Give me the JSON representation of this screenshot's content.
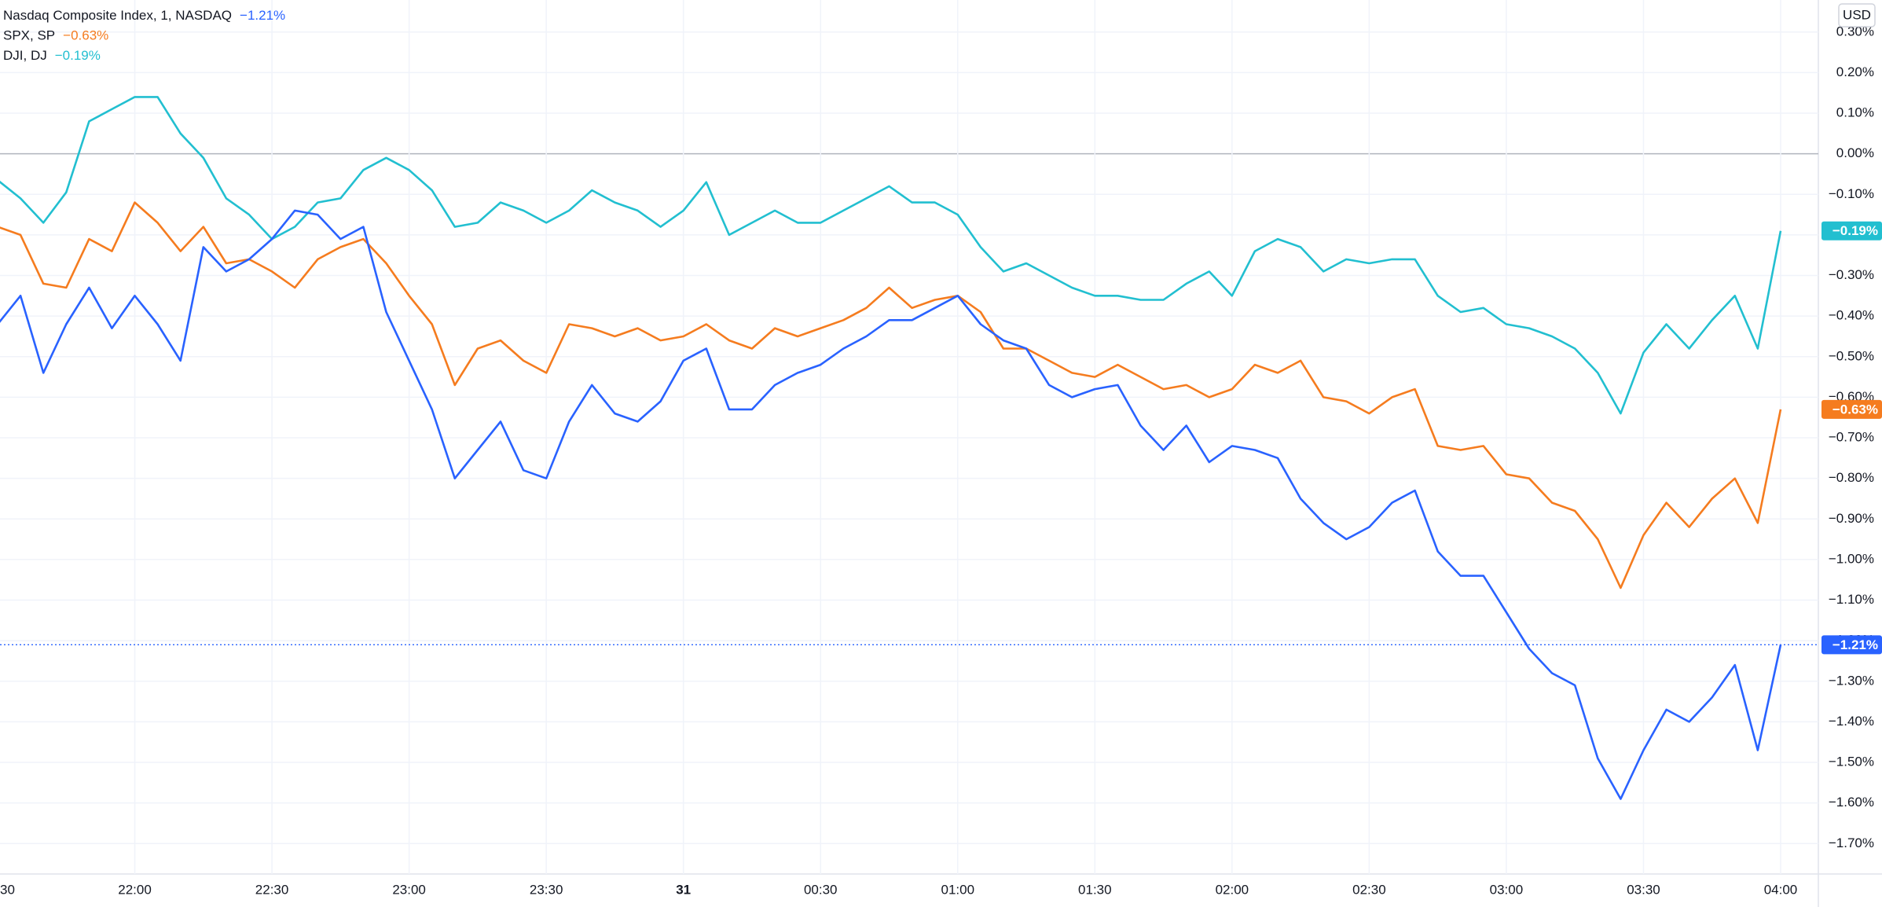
{
  "chart_data": {
    "type": "line",
    "currency": "USD",
    "x": [
      "21:30",
      "21:35",
      "21:40",
      "21:45",
      "21:50",
      "21:55",
      "22:00",
      "22:05",
      "22:10",
      "22:15",
      "22:20",
      "22:25",
      "22:30",
      "22:35",
      "22:40",
      "22:45",
      "22:50",
      "22:55",
      "23:00",
      "23:05",
      "23:10",
      "23:15",
      "23:20",
      "23:25",
      "23:30",
      "23:35",
      "23:40",
      "23:45",
      "23:50",
      "23:55",
      "00:00",
      "00:05",
      "00:10",
      "00:15",
      "00:20",
      "00:25",
      "00:30",
      "00:35",
      "00:40",
      "00:45",
      "00:50",
      "00:55",
      "01:00",
      "01:05",
      "01:10",
      "01:15",
      "01:20",
      "01:25",
      "01:30",
      "01:35",
      "01:40",
      "01:45",
      "01:50",
      "01:55",
      "02:00",
      "02:05",
      "02:10",
      "02:15",
      "02:20",
      "02:25",
      "02:30",
      "02:35",
      "02:40",
      "02:45",
      "02:50",
      "02:55",
      "03:00",
      "03:05",
      "03:10",
      "03:15",
      "03:20",
      "03:25",
      "03:30",
      "03:35",
      "03:40",
      "03:45",
      "03:50",
      "03:55",
      "04:00"
    ],
    "series": [
      {
        "name": "Nasdaq Composite Index, 1, NASDAQ",
        "value_label": "−1.21%",
        "color": "#2962ff",
        "values": [
          -0.42,
          -0.35,
          -0.54,
          -0.42,
          -0.33,
          -0.43,
          -0.35,
          -0.42,
          -0.51,
          -0.23,
          -0.29,
          -0.26,
          -0.21,
          -0.14,
          -0.15,
          -0.21,
          -0.18,
          -0.39,
          -0.51,
          -0.63,
          -0.8,
          -0.73,
          -0.66,
          -0.78,
          -0.8,
          -0.66,
          -0.57,
          -0.64,
          -0.66,
          -0.61,
          -0.51,
          -0.48,
          -0.63,
          -0.63,
          -0.57,
          -0.54,
          -0.52,
          -0.48,
          -0.45,
          -0.41,
          -0.41,
          -0.38,
          -0.35,
          -0.42,
          -0.46,
          -0.48,
          -0.57,
          -0.6,
          -0.58,
          -0.57,
          -0.67,
          -0.73,
          -0.67,
          -0.76,
          -0.72,
          -0.73,
          -0.75,
          -0.85,
          -0.91,
          -0.95,
          -0.92,
          -0.86,
          -0.83,
          -0.98,
          -1.04,
          -1.04,
          -1.13,
          -1.22,
          -1.28,
          -1.31,
          -1.49,
          -1.59,
          -1.47,
          -1.37,
          -1.4,
          -1.34,
          -1.26,
          -1.47,
          -1.21
        ]
      },
      {
        "name": "SPX, SP",
        "value_label": "−0.63%",
        "color": "#f57c1f",
        "values": [
          -0.18,
          -0.2,
          -0.32,
          -0.33,
          -0.21,
          -0.24,
          -0.12,
          -0.17,
          -0.24,
          -0.18,
          -0.27,
          -0.26,
          -0.29,
          -0.33,
          -0.26,
          -0.23,
          -0.21,
          -0.27,
          -0.35,
          -0.42,
          -0.57,
          -0.48,
          -0.46,
          -0.51,
          -0.54,
          -0.42,
          -0.43,
          -0.45,
          -0.43,
          -0.46,
          -0.45,
          -0.42,
          -0.46,
          -0.48,
          -0.43,
          -0.45,
          -0.43,
          -0.41,
          -0.38,
          -0.33,
          -0.38,
          -0.36,
          -0.35,
          -0.39,
          -0.48,
          -0.48,
          -0.51,
          -0.54,
          -0.55,
          -0.52,
          -0.55,
          -0.58,
          -0.57,
          -0.6,
          -0.58,
          -0.52,
          -0.54,
          -0.51,
          -0.6,
          -0.61,
          -0.64,
          -0.6,
          -0.58,
          -0.72,
          -0.73,
          -0.72,
          -0.79,
          -0.8,
          -0.86,
          -0.88,
          -0.95,
          -1.07,
          -0.94,
          -0.86,
          -0.92,
          -0.85,
          -0.8,
          -0.91,
          -0.63
        ]
      },
      {
        "name": "DJI, DJ",
        "value_label": "−0.19%",
        "color": "#22bfd0",
        "values": [
          -0.065,
          -0.11,
          -0.17,
          -0.095,
          0.08,
          0.11,
          0.14,
          0.14,
          0.05,
          -0.01,
          -0.11,
          -0.15,
          -0.21,
          -0.18,
          -0.12,
          -0.11,
          -0.04,
          -0.01,
          -0.04,
          -0.09,
          -0.18,
          -0.17,
          -0.12,
          -0.14,
          -0.17,
          -0.14,
          -0.09,
          -0.12,
          -0.14,
          -0.18,
          -0.14,
          -0.07,
          -0.2,
          -0.17,
          -0.14,
          -0.17,
          -0.17,
          -0.14,
          -0.11,
          -0.08,
          -0.12,
          -0.12,
          -0.15,
          -0.23,
          -0.29,
          -0.27,
          -0.3,
          -0.33,
          -0.35,
          -0.35,
          -0.36,
          -0.36,
          -0.32,
          -0.29,
          -0.35,
          -0.24,
          -0.21,
          -0.23,
          -0.29,
          -0.26,
          -0.27,
          -0.26,
          -0.26,
          -0.35,
          -0.39,
          -0.38,
          -0.42,
          -0.43,
          -0.45,
          -0.48,
          -0.54,
          -0.64,
          -0.49,
          -0.42,
          -0.48,
          -0.41,
          -0.35,
          -0.48,
          -0.19
        ]
      }
    ],
    "ylim": [
      -1.775,
      0.379
    ],
    "yticks": [
      {
        "value": 0.3,
        "label": "0.30%"
      },
      {
        "value": 0.2,
        "label": "0.20%"
      },
      {
        "value": 0.1,
        "label": "0.10%"
      },
      {
        "value": 0,
        "label": "0.00%"
      },
      {
        "value": -0.1,
        "label": "−0.10%"
      },
      {
        "value": -0.2,
        "label": "−0.20%"
      },
      {
        "value": -0.3,
        "label": "−0.30%"
      },
      {
        "value": -0.4,
        "label": "−0.40%"
      },
      {
        "value": -0.5,
        "label": "−0.50%"
      },
      {
        "value": -0.6,
        "label": "−0.60%"
      },
      {
        "value": -0.7,
        "label": "−0.70%"
      },
      {
        "value": -0.8,
        "label": "−0.80%"
      },
      {
        "value": -0.9,
        "label": "−0.90%"
      },
      {
        "value": -1.0,
        "label": "−1.00%"
      },
      {
        "value": -1.1,
        "label": "−1.10%"
      },
      {
        "value": -1.2,
        "label": "−1.20%"
      },
      {
        "value": -1.3,
        "label": "−1.30%"
      },
      {
        "value": -1.4,
        "label": "−1.40%"
      },
      {
        "value": -1.5,
        "label": "−1.50%"
      },
      {
        "value": -1.6,
        "label": "−1.60%"
      },
      {
        "value": -1.7,
        "label": "−1.70%"
      }
    ],
    "xticks": [
      {
        "value": "21:30",
        "label": "30"
      },
      "22:00",
      "22:30",
      "23:00",
      "23:30",
      {
        "value": "00:00",
        "label": "31"
      },
      "00:30",
      "01:00",
      "01:30",
      "02:00",
      "02:30",
      "03:00",
      "03:30",
      "04:00"
    ],
    "grid": true
  }
}
